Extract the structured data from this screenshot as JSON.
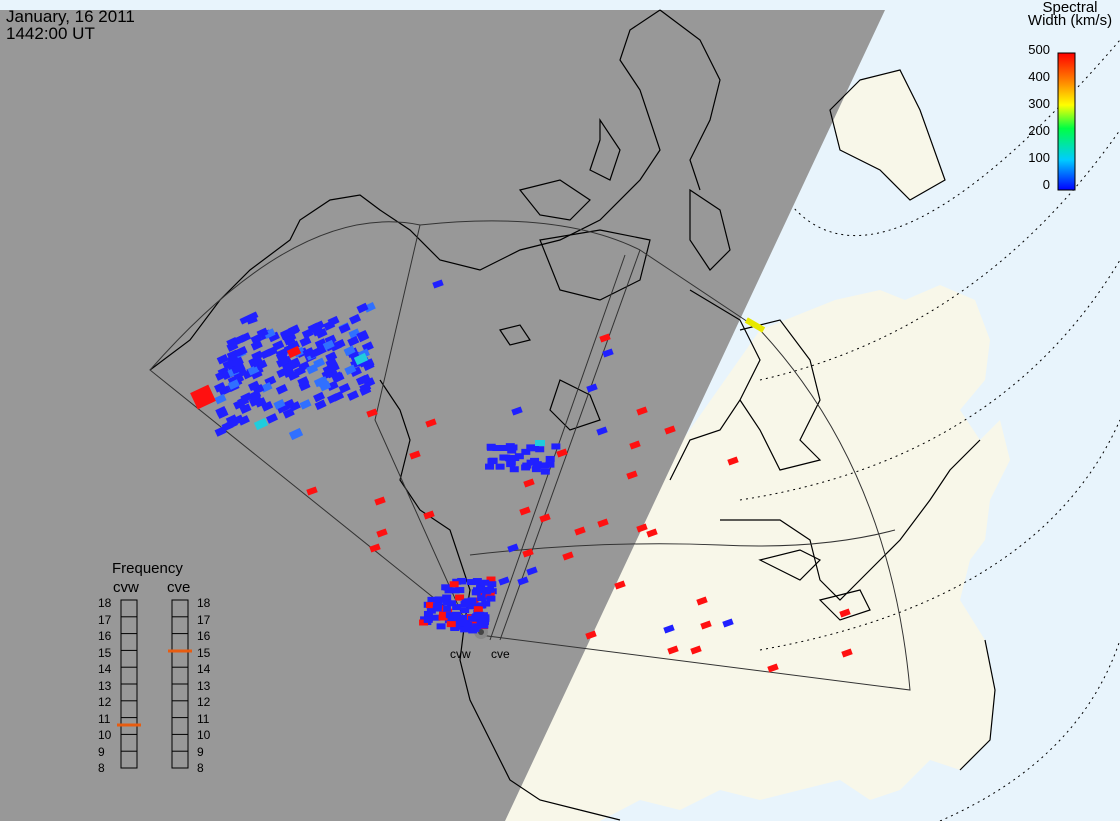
{
  "header": {
    "date": "January, 16 2011",
    "time": "1442:00 UT"
  },
  "colorbar": {
    "title_line1": "Spectral",
    "title_line2": "Width (km/s)",
    "ticks": [
      "500",
      "400",
      "300",
      "200",
      "100",
      "0"
    ],
    "range": [
      0,
      500
    ],
    "colors": [
      "#0000ff",
      "#00ccff",
      "#00ff66",
      "#ffff00",
      "#ff8000",
      "#ff0000"
    ]
  },
  "frequency": {
    "title": "Frequency",
    "left_label": "cvw",
    "right_label": "cve",
    "scale": [
      "18",
      "17",
      "16",
      "15",
      "14",
      "13",
      "12",
      "11",
      "10",
      "9",
      "8"
    ],
    "cvw_value": 10.8,
    "cve_value": 15.0
  },
  "radars": [
    {
      "label": "cvw"
    },
    {
      "label": "cve"
    }
  ],
  "colors": {
    "night": "#989898",
    "ocean": "#e8f4fc",
    "land_day": "#f8f7e9",
    "marker": "#e85c10"
  }
}
